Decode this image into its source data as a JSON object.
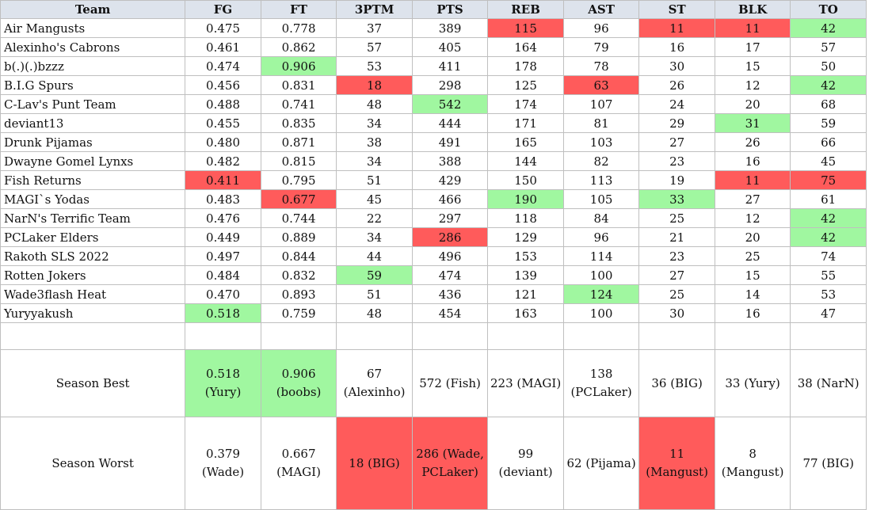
{
  "headers": [
    "Team",
    "FG",
    "FT",
    "3PTM",
    "PTS",
    "REB",
    "AST",
    "ST",
    "BLK",
    "TO"
  ],
  "rows": [
    {
      "team": "Air Mangusts",
      "v": [
        "0.475",
        "0.778",
        "37",
        "389",
        "115",
        "96",
        "11",
        "11",
        "42"
      ],
      "hl": [
        "",
        "",
        "",
        "",
        "red",
        "",
        "red",
        "red",
        "green"
      ]
    },
    {
      "team": "Alexinho's Cabrons",
      "v": [
        "0.461",
        "0.862",
        "57",
        "405",
        "164",
        "79",
        "16",
        "17",
        "57"
      ],
      "hl": [
        "",
        "",
        "",
        "",
        "",
        "",
        "",
        "",
        ""
      ]
    },
    {
      "team": "b(.)(.)bzzz",
      "v": [
        "0.474",
        "0.906",
        "53",
        "411",
        "178",
        "78",
        "30",
        "15",
        "50"
      ],
      "hl": [
        "",
        "green",
        "",
        "",
        "",
        "",
        "",
        "",
        ""
      ]
    },
    {
      "team": "B.I.G Spurs",
      "v": [
        "0.456",
        "0.831",
        "18",
        "298",
        "125",
        "63",
        "26",
        "12",
        "42"
      ],
      "hl": [
        "",
        "",
        "red",
        "",
        "",
        "red",
        "",
        "",
        "green"
      ]
    },
    {
      "team": "C-Lav's Punt Team",
      "v": [
        "0.488",
        "0.741",
        "48",
        "542",
        "174",
        "107",
        "24",
        "20",
        "68"
      ],
      "hl": [
        "",
        "",
        "",
        "green",
        "",
        "",
        "",
        "",
        ""
      ]
    },
    {
      "team": "deviant13",
      "v": [
        "0.455",
        "0.835",
        "34",
        "444",
        "171",
        "81",
        "29",
        "31",
        "59"
      ],
      "hl": [
        "",
        "",
        "",
        "",
        "",
        "",
        "",
        "green",
        ""
      ]
    },
    {
      "team": "Drunk Pijamas",
      "v": [
        "0.480",
        "0.871",
        "38",
        "491",
        "165",
        "103",
        "27",
        "26",
        "66"
      ],
      "hl": [
        "",
        "",
        "",
        "",
        "",
        "",
        "",
        "",
        ""
      ]
    },
    {
      "team": "Dwayne Gomel Lynxs",
      "v": [
        "0.482",
        "0.815",
        "34",
        "388",
        "144",
        "82",
        "23",
        "16",
        "45"
      ],
      "hl": [
        "",
        "",
        "",
        "",
        "",
        "",
        "",
        "",
        ""
      ]
    },
    {
      "team": "Fish Returns",
      "v": [
        "0.411",
        "0.795",
        "51",
        "429",
        "150",
        "113",
        "19",
        "11",
        "75"
      ],
      "hl": [
        "red",
        "",
        "",
        "",
        "",
        "",
        "",
        "red",
        "red"
      ]
    },
    {
      "team": "MAGI`s Yodas",
      "v": [
        "0.483",
        "0.677",
        "45",
        "466",
        "190",
        "105",
        "33",
        "27",
        "61"
      ],
      "hl": [
        "",
        "red",
        "",
        "",
        "green",
        "",
        "green",
        "",
        ""
      ]
    },
    {
      "team": "NarN's Terrific Team",
      "v": [
        "0.476",
        "0.744",
        "22",
        "297",
        "118",
        "84",
        "25",
        "12",
        "42"
      ],
      "hl": [
        "",
        "",
        "",
        "",
        "",
        "",
        "",
        "",
        "green"
      ]
    },
    {
      "team": "PCLaker Elders",
      "v": [
        "0.449",
        "0.889",
        "34",
        "286",
        "129",
        "96",
        "21",
        "20",
        "42"
      ],
      "hl": [
        "",
        "",
        "",
        "red",
        "",
        "",
        "",
        "",
        "green"
      ]
    },
    {
      "team": "Rakoth SLS 2022",
      "v": [
        "0.497",
        "0.844",
        "44",
        "496",
        "153",
        "114",
        "23",
        "25",
        "74"
      ],
      "hl": [
        "",
        "",
        "",
        "",
        "",
        "",
        "",
        "",
        ""
      ]
    },
    {
      "team": "Rotten Jokers",
      "v": [
        "0.484",
        "0.832",
        "59",
        "474",
        "139",
        "100",
        "27",
        "15",
        "55"
      ],
      "hl": [
        "",
        "",
        "green",
        "",
        "",
        "",
        "",
        "",
        ""
      ]
    },
    {
      "team": "Wade3flash Heat",
      "v": [
        "0.470",
        "0.893",
        "51",
        "436",
        "121",
        "124",
        "25",
        "14",
        "53"
      ],
      "hl": [
        "",
        "",
        "",
        "",
        "",
        "green",
        "",
        "",
        ""
      ]
    },
    {
      "team": "Yuryyakush",
      "v": [
        "0.518",
        "0.759",
        "48",
        "454",
        "163",
        "100",
        "30",
        "16",
        "47"
      ],
      "hl": [
        "green",
        "",
        "",
        "",
        "",
        "",
        "",
        "",
        ""
      ]
    }
  ],
  "best": {
    "label": "Season Best",
    "v": [
      "0.518 (Yury)",
      "0.906 (boobs)",
      "67 (Alexinho)",
      "572 (Fish)",
      "223 (MAGI)",
      "138 (PCLaker)",
      "36 (BIG)",
      "33 (Yury)",
      "38 (NarN)"
    ],
    "hl": [
      "green",
      "green",
      "",
      "",
      "",
      "",
      "",
      "",
      ""
    ]
  },
  "worst": {
    "label": "Season Worst",
    "v": [
      "0.379 (Wade)",
      "0.667 (MAGI)",
      "18 (BIG)",
      "286 (Wade, PCLaker)",
      "99 (deviant)",
      "62 (Pijama)",
      "11 (Mangust)",
      "8 (Mangust)",
      "77 (BIG)"
    ],
    "hl": [
      "",
      "",
      "red",
      "red",
      "",
      "",
      "red",
      "",
      ""
    ]
  },
  "colors": {
    "red": "#ff5b5b",
    "green": "#a0f7a0",
    "header": "#dde3ec"
  }
}
